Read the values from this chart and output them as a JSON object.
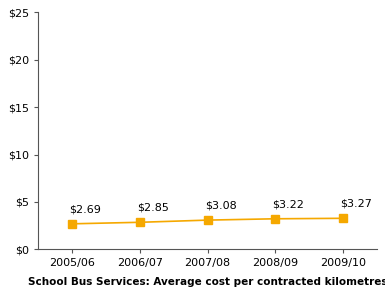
{
  "categories": [
    "2005/06",
    "2006/07",
    "2007/08",
    "2008/09",
    "2009/10"
  ],
  "values": [
    2.69,
    2.85,
    3.08,
    3.22,
    3.27
  ],
  "line_color": "#F5A800",
  "marker_color": "#F5A800",
  "marker_style": "s",
  "marker_size": 6,
  "ylim": [
    0,
    25
  ],
  "yticks": [
    0,
    5,
    10,
    15,
    20,
    25
  ],
  "xlabel": "School Bus Services: Average cost per contracted kilometres",
  "xlabel_fontsize": 7.5,
  "tick_fontsize": 8,
  "annotation_fontsize": 8,
  "annotations": [
    "$2.69",
    "$2.85",
    "$3.08",
    "$3.22",
    "$3.27"
  ],
  "background_color": "#ffffff",
  "line_width": 1.2,
  "spine_color": "#555555"
}
